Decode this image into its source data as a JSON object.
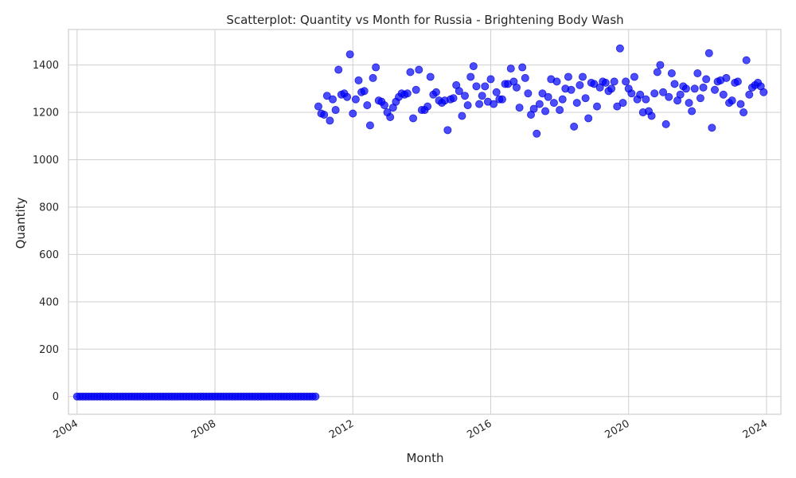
{
  "chart_data": {
    "type": "scatter",
    "title": "Scatterplot: Quantity vs Month for Russia - Brightening Body Wash",
    "xlabel": "Month",
    "ylabel": "Quantity",
    "x_ticks": [
      "2004",
      "2008",
      "2012",
      "2016",
      "2020",
      "2024"
    ],
    "y_ticks": [
      0,
      200,
      400,
      600,
      800,
      1000,
      1200,
      1400
    ],
    "xlim": [
      "2003-10",
      "2024-06"
    ],
    "ylim": [
      -75,
      1550
    ],
    "grid": true,
    "color": "#0000ff",
    "start_month": "2004-01",
    "values": [
      0,
      0,
      0,
      0,
      0,
      0,
      0,
      0,
      0,
      0,
      0,
      0,
      0,
      0,
      0,
      0,
      0,
      0,
      0,
      0,
      0,
      0,
      0,
      0,
      0,
      0,
      0,
      0,
      0,
      0,
      0,
      0,
      0,
      0,
      0,
      0,
      0,
      0,
      0,
      0,
      0,
      0,
      0,
      0,
      0,
      0,
      0,
      0,
      0,
      0,
      0,
      0,
      0,
      0,
      0,
      0,
      0,
      0,
      0,
      0,
      0,
      0,
      0,
      0,
      0,
      0,
      0,
      0,
      0,
      0,
      0,
      0,
      0,
      0,
      0,
      0,
      0,
      0,
      0,
      0,
      0,
      0,
      0,
      0,
      1225,
      1195,
      1190,
      1270,
      1165,
      1255,
      1210,
      1380,
      1275,
      1280,
      1265,
      1445,
      1195,
      1255,
      1335,
      1285,
      1290,
      1230,
      1145,
      1345,
      1390,
      1250,
      1245,
      1230,
      1200,
      1180,
      1220,
      1245,
      1265,
      1280,
      1275,
      1280,
      1370,
      1175,
      1295,
      1380,
      1210,
      1210,
      1225,
      1350,
      1275,
      1285,
      1250,
      1240,
      1250,
      1125,
      1255,
      1260,
      1315,
      1290,
      1185,
      1270,
      1230,
      1350,
      1395,
      1310,
      1235,
      1270,
      1310,
      1245,
      1340,
      1235,
      1285,
      1255,
      1255,
      1320,
      1320,
      1385,
      1330,
      1305,
      1220,
      1390,
      1345,
      1280,
      1190,
      1215,
      1110,
      1235,
      1280,
      1205,
      1265,
      1340,
      1240,
      1330,
      1210,
      1255,
      1300,
      1350,
      1295,
      1140,
      1240,
      1315,
      1350,
      1260,
      1175,
      1325,
      1320,
      1225,
      1305,
      1330,
      1325,
      1290,
      1300,
      1330,
      1225,
      1470,
      1240,
      1330,
      1300,
      1280,
      1350,
      1255,
      1275,
      1200,
      1255,
      1205,
      1185,
      1280,
      1370,
      1400,
      1285,
      1150,
      1265,
      1365,
      1320,
      1250,
      1275,
      1310,
      1300,
      1240,
      1205,
      1300,
      1365,
      1260,
      1305,
      1340,
      1450,
      1135,
      1295,
      1330,
      1335,
      1275,
      1345,
      1240,
      1250,
      1325,
      1330,
      1235,
      1200,
      1420,
      1275,
      1305,
      1315,
      1325,
      1310,
      1285
    ]
  }
}
